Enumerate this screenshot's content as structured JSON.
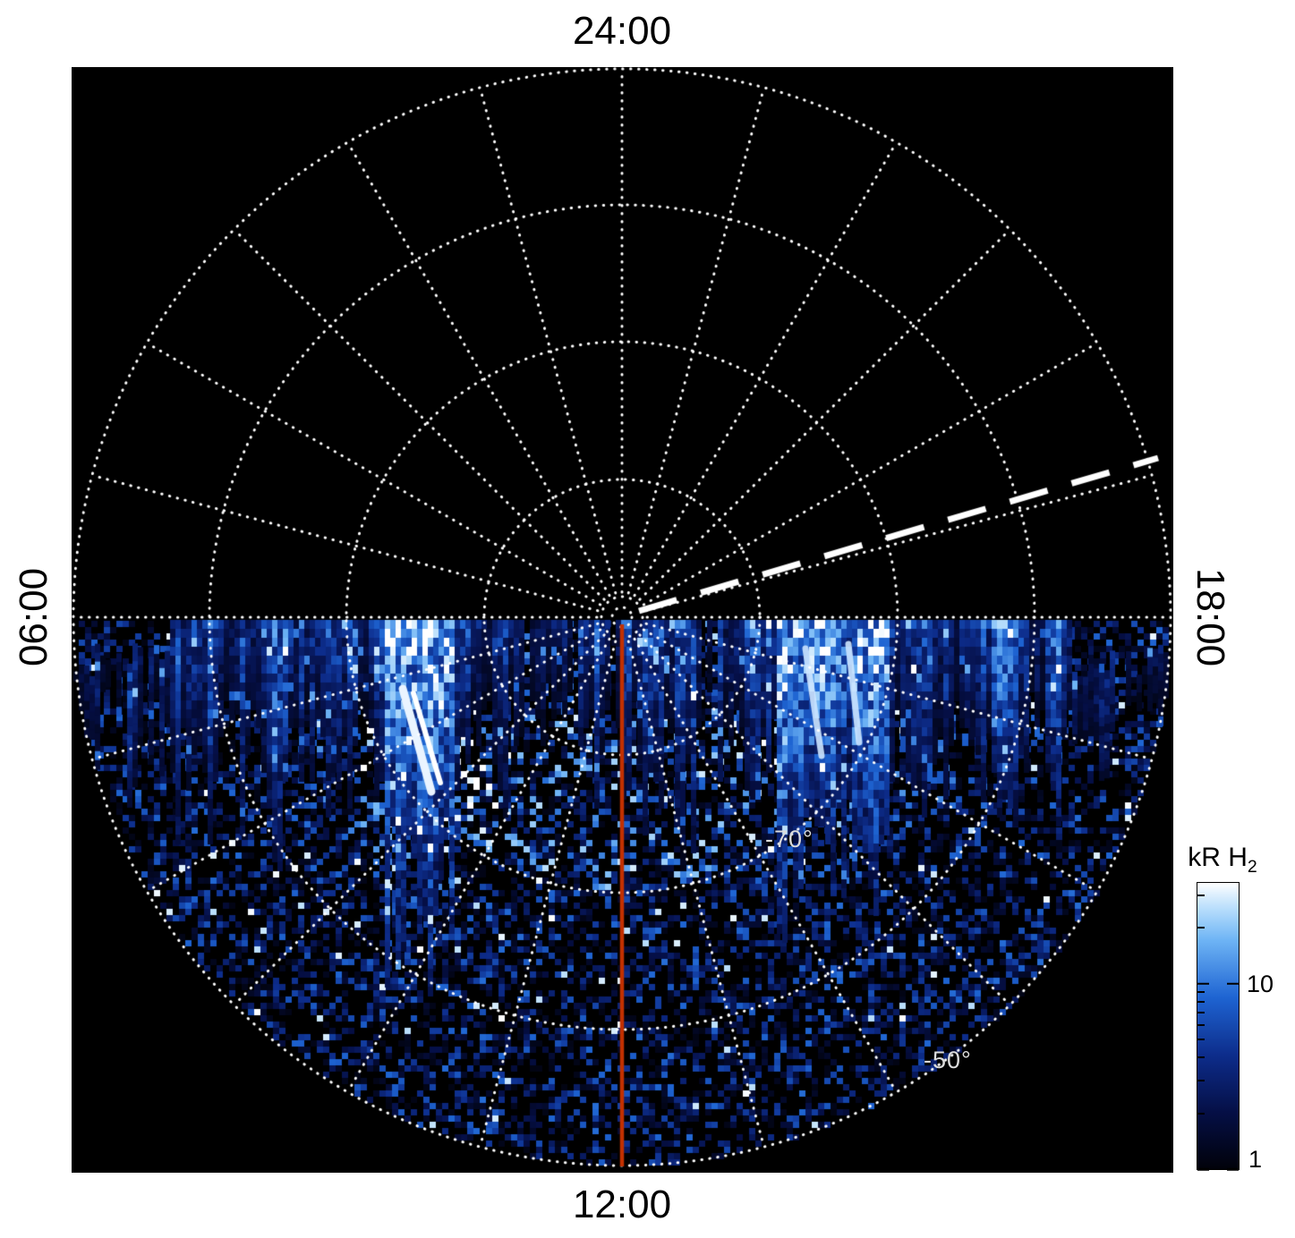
{
  "figure": {
    "background": "#ffffff",
    "plot_background": "#000000"
  },
  "axis_labels": {
    "top": "24:00",
    "bottom": "12:00",
    "left": "06:00",
    "right": "18:00"
  },
  "latitude_labels": {
    "lat70": "-70°",
    "lat50": "-50°"
  },
  "colorbar": {
    "title": "kR H",
    "title_sub": "2",
    "tick_top": "10",
    "tick_bottom": "1"
  },
  "chart_data": {
    "type": "heatmap",
    "projection": "polar",
    "description": "Polar map of H2 auroral emission brightness (kR) versus local time (angle) and latitude (radius). The pole (-90) is at the center and the -50 latitude circle is at the outer edge. Emission fills the dayside half from 06:00 through 12:00 to 18:00; the nightside half is black.",
    "angular_axis": {
      "label_type": "local time",
      "ticks": [
        "24:00",
        "06:00",
        "12:00",
        "18:00"
      ],
      "tick_positions": [
        "top",
        "left",
        "bottom",
        "right"
      ],
      "spoke_interval_hours": 1,
      "direction": "counterclockwise from top"
    },
    "radial_axis": {
      "label_type": "latitude",
      "center_latitude_deg": -90,
      "edge_latitude_deg": -50,
      "grid_circles_deg": [
        -80,
        -70,
        -60,
        -50
      ],
      "labeled_circles": [
        {
          "latitude_deg": -70,
          "label": "-70°"
        },
        {
          "latitude_deg": -50,
          "label": "-50°"
        }
      ]
    },
    "grid_style": "white dotted circles and hourly spokes",
    "colorbar": {
      "label": "kR H2",
      "scale": "log",
      "value_min": 1,
      "value_max": 35,
      "major_ticks": [
        1,
        10
      ],
      "minor_ticks": [
        2,
        3,
        4,
        5,
        6,
        7,
        8,
        9,
        20,
        30
      ],
      "stops": [
        [
          0,
          1,
          2,
          10
        ],
        [
          0.2,
          5,
          15,
          70
        ],
        [
          0.4,
          13,
          45,
          140
        ],
        [
          0.6,
          30,
          100,
          210
        ],
        [
          0.8,
          110,
          180,
          245
        ],
        [
          0.92,
          190,
          225,
          252
        ],
        [
          1,
          255,
          255,
          255
        ]
      ]
    },
    "annotations": [
      {
        "name": "noon-meridian-line",
        "style": "solid",
        "color": "#c23000",
        "from": "pole",
        "to": "12:00 outer edge"
      },
      {
        "name": "dashed-line",
        "style": "dashed",
        "color": "#ffffff",
        "from": "near pole",
        "toward": "upper right, ~19:00 direction"
      }
    ],
    "emission_features": [
      "columnar streaks extending equatorward from the 06:00-18:00 terminator line",
      "bright white patches near 09:30 and 15:00 around -75 latitude",
      "speckled 1-10 kR emission covering the dayside cap out to the -50 edge"
    ],
    "render_seed": 20240613
  }
}
